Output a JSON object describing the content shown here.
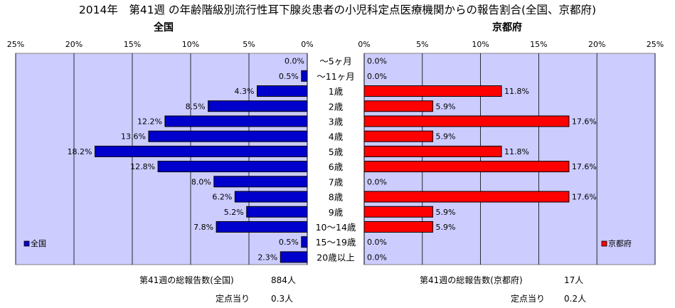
{
  "title": "2014年　第41週 の年齢階級別流行性耳下腺炎患者の小児科定点医療機関からの報告割合(全国、京都府)",
  "chart_data": [
    {
      "type": "bar",
      "orientation": "horizontal",
      "title": "全国",
      "categories": [
        "～5ヶ月",
        "～11ヶ月",
        "1歳",
        "2歳",
        "3歳",
        "4歳",
        "5歳",
        "6歳",
        "7歳",
        "8歳",
        "9歳",
        "10～14歳",
        "15～19歳",
        "20歳以上"
      ],
      "series": [
        {
          "name": "全国",
          "color": "#0000cc",
          "values": [
            0.0,
            0.5,
            4.3,
            8.5,
            12.2,
            13.6,
            18.2,
            12.8,
            8.0,
            6.2,
            5.2,
            7.8,
            0.5,
            2.3
          ]
        }
      ],
      "xlim": [
        0,
        25
      ],
      "x_reversed": true,
      "ticks": [
        "0%",
        "5%",
        "10%",
        "15%",
        "20%",
        "25%"
      ],
      "legend": "bottom-left",
      "grid": true,
      "plot_bg": "#ccccff"
    },
    {
      "type": "bar",
      "orientation": "horizontal",
      "title": "京都府",
      "categories": [
        "～5ヶ月",
        "～11ヶ月",
        "1歳",
        "2歳",
        "3歳",
        "4歳",
        "5歳",
        "6歳",
        "7歳",
        "8歳",
        "9歳",
        "10～14歳",
        "15～19歳",
        "20歳以上"
      ],
      "series": [
        {
          "name": "京都府",
          "color": "#ff0000",
          "values": [
            0.0,
            0.0,
            11.8,
            5.9,
            17.6,
            5.9,
            11.8,
            17.6,
            0.0,
            17.6,
            5.9,
            5.9,
            0.0,
            0.0
          ]
        }
      ],
      "xlim": [
        0,
        25
      ],
      "ticks": [
        "0%",
        "5%",
        "10%",
        "15%",
        "20%",
        "25%"
      ],
      "legend": "bottom-right",
      "grid": true,
      "plot_bg": "#ccccff"
    }
  ],
  "footer": {
    "national_total_label": "第41週の総報告数(全国)",
    "national_total_value": "884人",
    "national_per_label": "定点当り",
    "national_per_value": "0.3人",
    "kyoto_total_label": "第41週の総報告数(京都府)",
    "kyoto_total_value": "17人",
    "kyoto_per_label": "定点当り",
    "kyoto_per_value": "0.2人"
  }
}
